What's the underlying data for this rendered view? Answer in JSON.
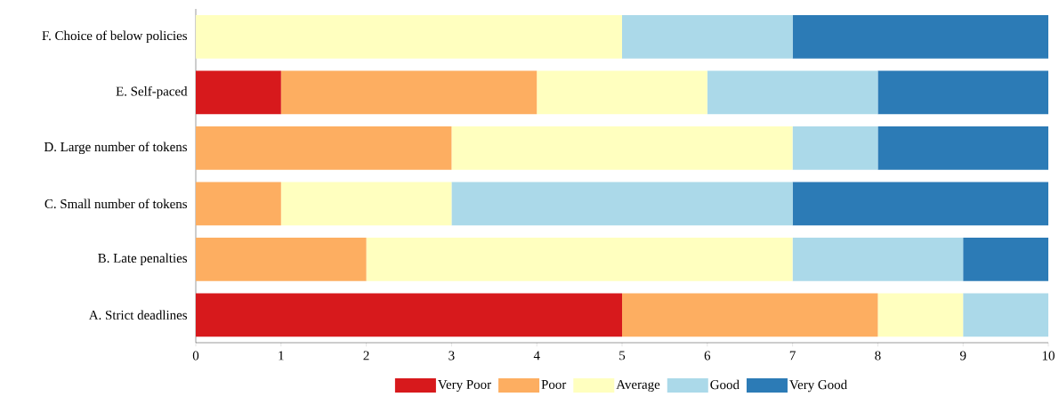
{
  "chart_data": {
    "type": "bar",
    "orientation": "horizontal",
    "stacked": true,
    "categories": [
      "F. Choice of below policies",
      "E. Self-paced",
      "D. Large number of tokens",
      "C. Small number of tokens",
      "B. Late penalties",
      "A. Strict deadlines"
    ],
    "series": [
      {
        "name": "Very Poor",
        "color": "#d7191c",
        "values": [
          0,
          1,
          0,
          0,
          0,
          5
        ]
      },
      {
        "name": "Poor",
        "color": "#fdae61",
        "values": [
          0,
          3,
          3,
          1,
          2,
          3
        ]
      },
      {
        "name": "Average",
        "color": "#ffffbf",
        "values": [
          5,
          2,
          4,
          2,
          5,
          1
        ]
      },
      {
        "name": "Good",
        "color": "#abd9e9",
        "values": [
          2,
          2,
          1,
          4,
          2,
          1
        ]
      },
      {
        "name": "Very Good",
        "color": "#2c7bb6",
        "values": [
          3,
          2,
          2,
          3,
          1,
          0
        ]
      }
    ],
    "xlim": [
      0,
      10
    ],
    "xticks": [
      0,
      1,
      2,
      3,
      4,
      5,
      6,
      7,
      8,
      9,
      10
    ],
    "legend": "bottom"
  }
}
